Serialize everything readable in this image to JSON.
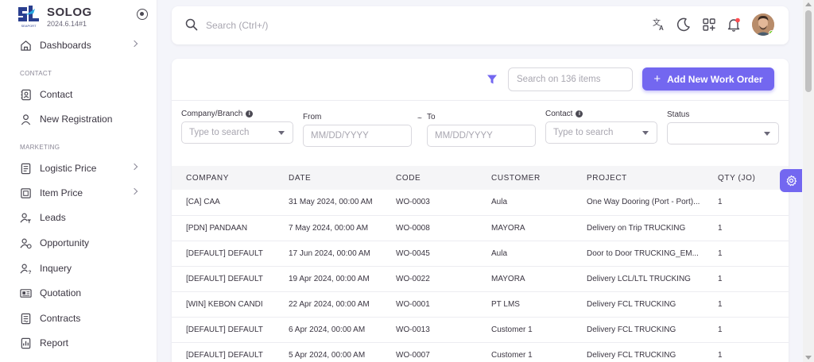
{
  "brand": {
    "name": "SOLOG",
    "version": "2024.6.14#1",
    "logo_caption": "SEAPORT"
  },
  "sidebar": {
    "items": [
      {
        "label": "Dashboards",
        "icon": "home-icon",
        "has_submenu": true
      },
      {
        "label": "Contact",
        "icon": "contact-card-icon"
      },
      {
        "label": "New Registration",
        "icon": "user-icon"
      },
      {
        "label": "Logistic Price",
        "icon": "document-list-icon",
        "has_submenu": true
      },
      {
        "label": "Item Price",
        "icon": "tag-box-icon",
        "has_submenu": true
      },
      {
        "label": "Leads",
        "icon": "user-filter-icon"
      },
      {
        "label": "Opportunity",
        "icon": "user-star-icon"
      },
      {
        "label": "Inquery",
        "icon": "user-question-icon"
      },
      {
        "label": "Quotation",
        "icon": "id-card-icon"
      },
      {
        "label": "Contracts",
        "icon": "contract-icon"
      },
      {
        "label": "Report",
        "icon": "report-icon"
      }
    ],
    "sections": {
      "contact": "CONTACT",
      "marketing": "MARKETING"
    }
  },
  "topbar": {
    "search_placeholder": "Search (Ctrl+/)"
  },
  "toolbar": {
    "items_search_placeholder": "Search on 136 items",
    "add_button_label": "Add New Work Order"
  },
  "filters": {
    "company_label": "Company/Branch",
    "company_placeholder": "Type to search",
    "from_label": "From",
    "from_placeholder": "MM/DD/YYYY",
    "range_separator": "~",
    "to_label": "To",
    "to_placeholder": "MM/DD/YYYY",
    "contact_label": "Contact",
    "contact_placeholder": "Type to search",
    "status_label": "Status",
    "status_value": ""
  },
  "table": {
    "columns": [
      "COMPANY",
      "DATE",
      "CODE",
      "CUSTOMER",
      "PROJECT",
      "QTY (JO)"
    ],
    "rows": [
      [
        "[CA] CAA",
        "31 May 2024, 00:00 AM",
        "WO-0003",
        "Aula",
        "One Way Dooring (Port - Port)...",
        "1"
      ],
      [
        "[PDN] PANDAAN",
        "7 May 2024, 00:00 AM",
        "WO-0008",
        "MAYORA",
        "Delivery on Trip TRUCKING",
        "1"
      ],
      [
        "[DEFAULT] DEFAULT",
        "17 Jun 2024, 00:00 AM",
        "WO-0045",
        "Aula",
        "Door to Door TRUCKING_EM...",
        "1"
      ],
      [
        "[DEFAULT] DEFAULT",
        "19 Apr 2024, 00:00 AM",
        "WO-0022",
        "MAYORA",
        "Delivery LCL/LTL TRUCKING",
        "1"
      ],
      [
        "[WIN] KEBON CANDI",
        "22 Apr 2024, 00:00 AM",
        "WO-0001",
        "PT LMS",
        "Delivery FCL TRUCKING",
        "1"
      ],
      [
        "[DEFAULT] DEFAULT",
        "6 Apr 2024, 00:00 AM",
        "WO-0013",
        "Customer 1",
        "Delivery FCL TRUCKING",
        "1"
      ],
      [
        "[DEFAULT] DEFAULT",
        "5 Apr 2024, 00:00 AM",
        "WO-0007",
        "Customer 1",
        "Delivery FCL TRUCKING",
        "1"
      ]
    ]
  },
  "colors": {
    "accent": "#7367f0",
    "online": "#56ca00",
    "notification": "#ff4c51"
  }
}
